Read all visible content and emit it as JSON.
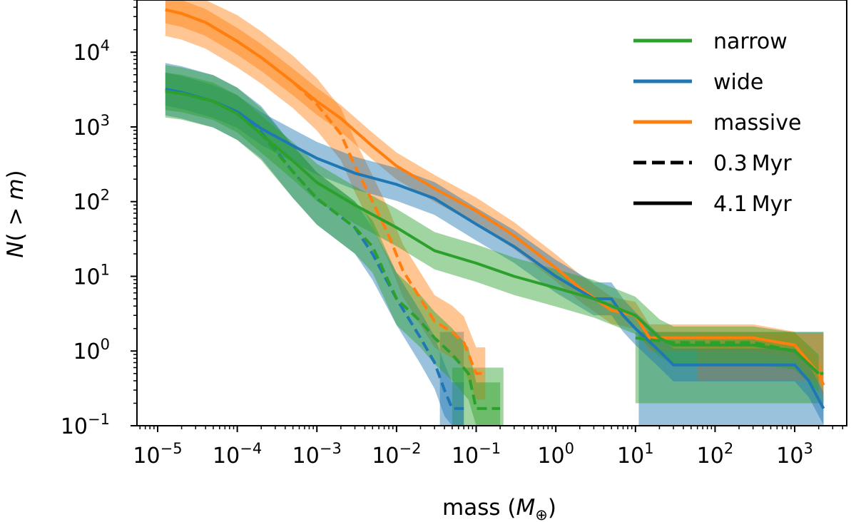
{
  "chart_data": {
    "type": "line",
    "xscale": "log",
    "yscale": "log",
    "xlim": [
      5.5e-06,
      4500
    ],
    "ylim": [
      0.1,
      50000
    ],
    "xlabel_text": "mass (",
    "xlabel_symbol": "M",
    "xlabel_sub": "⊕",
    "xlabel_end": ")",
    "ylabel_text": "N(",
    "ylabel_gt": " > ",
    "ylabel_symbol": "m",
    "ylabel_end": ")",
    "x_ticks": [
      {
        "value": 1e-05,
        "base": "10",
        "exp": "−5"
      },
      {
        "value": 0.0001,
        "base": "10",
        "exp": "−4"
      },
      {
        "value": 0.001,
        "base": "10",
        "exp": "−3"
      },
      {
        "value": 0.01,
        "base": "10",
        "exp": "−2"
      },
      {
        "value": 0.1,
        "base": "10",
        "exp": "−1"
      },
      {
        "value": 1,
        "base": "10",
        "exp": "0"
      },
      {
        "value": 10,
        "base": "10",
        "exp": "1"
      },
      {
        "value": 100,
        "base": "10",
        "exp": "2"
      },
      {
        "value": 1000,
        "base": "10",
        "exp": "3"
      }
    ],
    "y_ticks": [
      {
        "value": 0.1,
        "base": "10",
        "exp": "−1"
      },
      {
        "value": 1,
        "base": "10",
        "exp": "0"
      },
      {
        "value": 10,
        "base": "10",
        "exp": "1"
      },
      {
        "value": 100,
        "base": "10",
        "exp": "2"
      },
      {
        "value": 1000,
        "base": "10",
        "exp": "3"
      },
      {
        "value": 10000,
        "base": "10",
        "exp": "4"
      }
    ],
    "legend": {
      "placement": "top-right",
      "entries": [
        {
          "label": "narrow",
          "color": "#2ca02c",
          "style": "solid",
          "width": 4
        },
        {
          "label": "wide",
          "color": "#1f77b4",
          "style": "solid",
          "width": 4
        },
        {
          "label": "massive",
          "color": "#ff7f0e",
          "style": "solid",
          "width": 4
        },
        {
          "label": "0.3 Myr",
          "color": "#000000",
          "style": "dashed",
          "width": 4
        },
        {
          "label": "4.1 Myr",
          "color": "#000000",
          "style": "solid",
          "width": 4
        }
      ]
    },
    "series": [
      {
        "name": "massive 4.1 Myr",
        "color": "#ff7f0e",
        "style": "solid",
        "points": [
          [
            1.25e-05,
            37000
          ],
          [
            2e-05,
            33000
          ],
          [
            4e-05,
            25000
          ],
          [
            0.0001,
            14000
          ],
          [
            0.0002,
            8500
          ],
          [
            0.0005,
            4000
          ],
          [
            0.001,
            2200
          ],
          [
            0.002,
            1300
          ],
          [
            0.005,
            550
          ],
          [
            0.01,
            300
          ],
          [
            0.03,
            150
          ],
          [
            0.1,
            75
          ],
          [
            0.3,
            35
          ],
          [
            1,
            13
          ],
          [
            2,
            7
          ],
          [
            5,
            3.5
          ],
          [
            10,
            3
          ],
          [
            15,
            1.5
          ],
          [
            30,
            1.5
          ],
          [
            100,
            1.5
          ],
          [
            300,
            1.5
          ],
          [
            1000,
            1.2
          ],
          [
            2000,
            0.5
          ],
          [
            2300,
            0.35
          ]
        ],
        "band": 0.18
      },
      {
        "name": "massive 0.3 Myr",
        "color": "#ff7f0e",
        "style": "dashed",
        "points": [
          [
            1.25e-05,
            37000
          ],
          [
            2e-05,
            33000
          ],
          [
            4e-05,
            25000
          ],
          [
            0.0001,
            14000
          ],
          [
            0.0002,
            8500
          ],
          [
            0.0005,
            4000
          ],
          [
            0.001,
            2000
          ],
          [
            0.002,
            800
          ],
          [
            0.003,
            300
          ],
          [
            0.005,
            100
          ],
          [
            0.008,
            35
          ],
          [
            0.012,
            12
          ],
          [
            0.02,
            5
          ],
          [
            0.03,
            2.5
          ],
          [
            0.05,
            1.8
          ],
          [
            0.07,
            1.3
          ],
          [
            0.1,
            0.5
          ],
          [
            0.13,
            0.5
          ]
        ],
        "band": 0.35
      },
      {
        "name": "wide 4.1 Myr",
        "color": "#1f77b4",
        "style": "solid",
        "points": [
          [
            1.25e-05,
            3200
          ],
          [
            2e-05,
            2900
          ],
          [
            5e-05,
            2200
          ],
          [
            0.0001,
            1600
          ],
          [
            0.0002,
            950
          ],
          [
            0.0005,
            560
          ],
          [
            0.001,
            380
          ],
          [
            0.003,
            240
          ],
          [
            0.01,
            170
          ],
          [
            0.03,
            110
          ],
          [
            0.1,
            50
          ],
          [
            0.3,
            25
          ],
          [
            1,
            10
          ],
          [
            3,
            5
          ],
          [
            5,
            5
          ],
          [
            7,
            3
          ],
          [
            10,
            2
          ],
          [
            20,
            1
          ],
          [
            30,
            0.65
          ],
          [
            100,
            0.65
          ],
          [
            300,
            0.65
          ],
          [
            1000,
            0.65
          ],
          [
            1500,
            0.4
          ],
          [
            2300,
            0.17
          ]
        ],
        "band": 0.22
      },
      {
        "name": "wide 0.3 Myr",
        "color": "#1f77b4",
        "style": "dashed",
        "points": [
          [
            1.25e-05,
            3200
          ],
          [
            2e-05,
            2900
          ],
          [
            5e-05,
            2200
          ],
          [
            0.0001,
            1500
          ],
          [
            0.0002,
            850
          ],
          [
            0.0005,
            250
          ],
          [
            0.001,
            110
          ],
          [
            0.003,
            45
          ],
          [
            0.005,
            20
          ],
          [
            0.01,
            5
          ],
          [
            0.02,
            1.5
          ],
          [
            0.03,
            0.7
          ],
          [
            0.04,
            0.3
          ],
          [
            0.05,
            0.17
          ],
          [
            0.07,
            0.17
          ]
        ],
        "band": 0.35
      },
      {
        "name": "narrow 4.1 Myr",
        "color": "#2ca02c",
        "style": "solid",
        "points": [
          [
            1.25e-05,
            3000
          ],
          [
            2e-05,
            2800
          ],
          [
            5e-05,
            2200
          ],
          [
            0.0001,
            1500
          ],
          [
            0.0002,
            800
          ],
          [
            0.0005,
            350
          ],
          [
            0.001,
            180
          ],
          [
            0.003,
            90
          ],
          [
            0.01,
            45
          ],
          [
            0.03,
            22
          ],
          [
            0.1,
            15
          ],
          [
            0.3,
            10
          ],
          [
            1,
            7
          ],
          [
            3,
            5
          ],
          [
            10,
            3
          ],
          [
            20,
            1.5
          ],
          [
            30,
            1.2
          ],
          [
            100,
            1.2
          ],
          [
            300,
            1.2
          ],
          [
            1000,
            1
          ],
          [
            2000,
            0.5
          ]
        ],
        "band": 0.25
      },
      {
        "name": "narrow 0.3 Myr",
        "color": "#2ca02c",
        "style": "dashed",
        "points": [
          [
            1.25e-05,
            3000
          ],
          [
            2e-05,
            2800
          ],
          [
            5e-05,
            2200
          ],
          [
            0.0001,
            1500
          ],
          [
            0.0002,
            800
          ],
          [
            0.0005,
            250
          ],
          [
            0.001,
            110
          ],
          [
            0.003,
            45
          ],
          [
            0.005,
            25
          ],
          [
            0.01,
            5
          ],
          [
            0.02,
            2.5
          ],
          [
            0.03,
            1.5
          ],
          [
            0.05,
            0.9
          ],
          [
            0.08,
            0.5
          ],
          [
            0.1,
            0.17
          ],
          [
            0.2,
            0.17
          ]
        ],
        "band": 0.35
      },
      {
        "name": "narrow 0.3 Myr tail",
        "color": "#2ca02c",
        "style": "dashed",
        "points": [
          [
            10,
            1.5
          ],
          [
            30,
            1.3
          ],
          [
            100,
            1.3
          ],
          [
            300,
            1.3
          ],
          [
            1000,
            1
          ],
          [
            2000,
            0.5
          ],
          [
            2300,
            0.5
          ]
        ],
        "band": 0
      }
    ],
    "bands_extra": [
      {
        "name": "wide tail band",
        "color": "#1f77b4",
        "x0": 11,
        "x1": 2300,
        "y0": 0.1,
        "y1": 1.8
      },
      {
        "name": "narrow high-mass band",
        "color": "#2ca02c",
        "x0": 10,
        "x1": 2300,
        "y0": 0.2,
        "y1": 1.8
      },
      {
        "name": "massive high-mass band",
        "color": "#ff7f0e",
        "x0": 60,
        "x1": 2300,
        "y0": 0.4,
        "y1": 1.7
      },
      {
        "name": "wide low-mass tail band",
        "color": "#1f77b4",
        "x0": 0.035,
        "x1": 0.07,
        "y0": 0.1,
        "y1": 1.8
      },
      {
        "name": "narrow low-mass tail band",
        "color": "#2ca02c",
        "x0": 0.05,
        "x1": 0.22,
        "y0": 0.1,
        "y1": 0.6
      }
    ]
  }
}
